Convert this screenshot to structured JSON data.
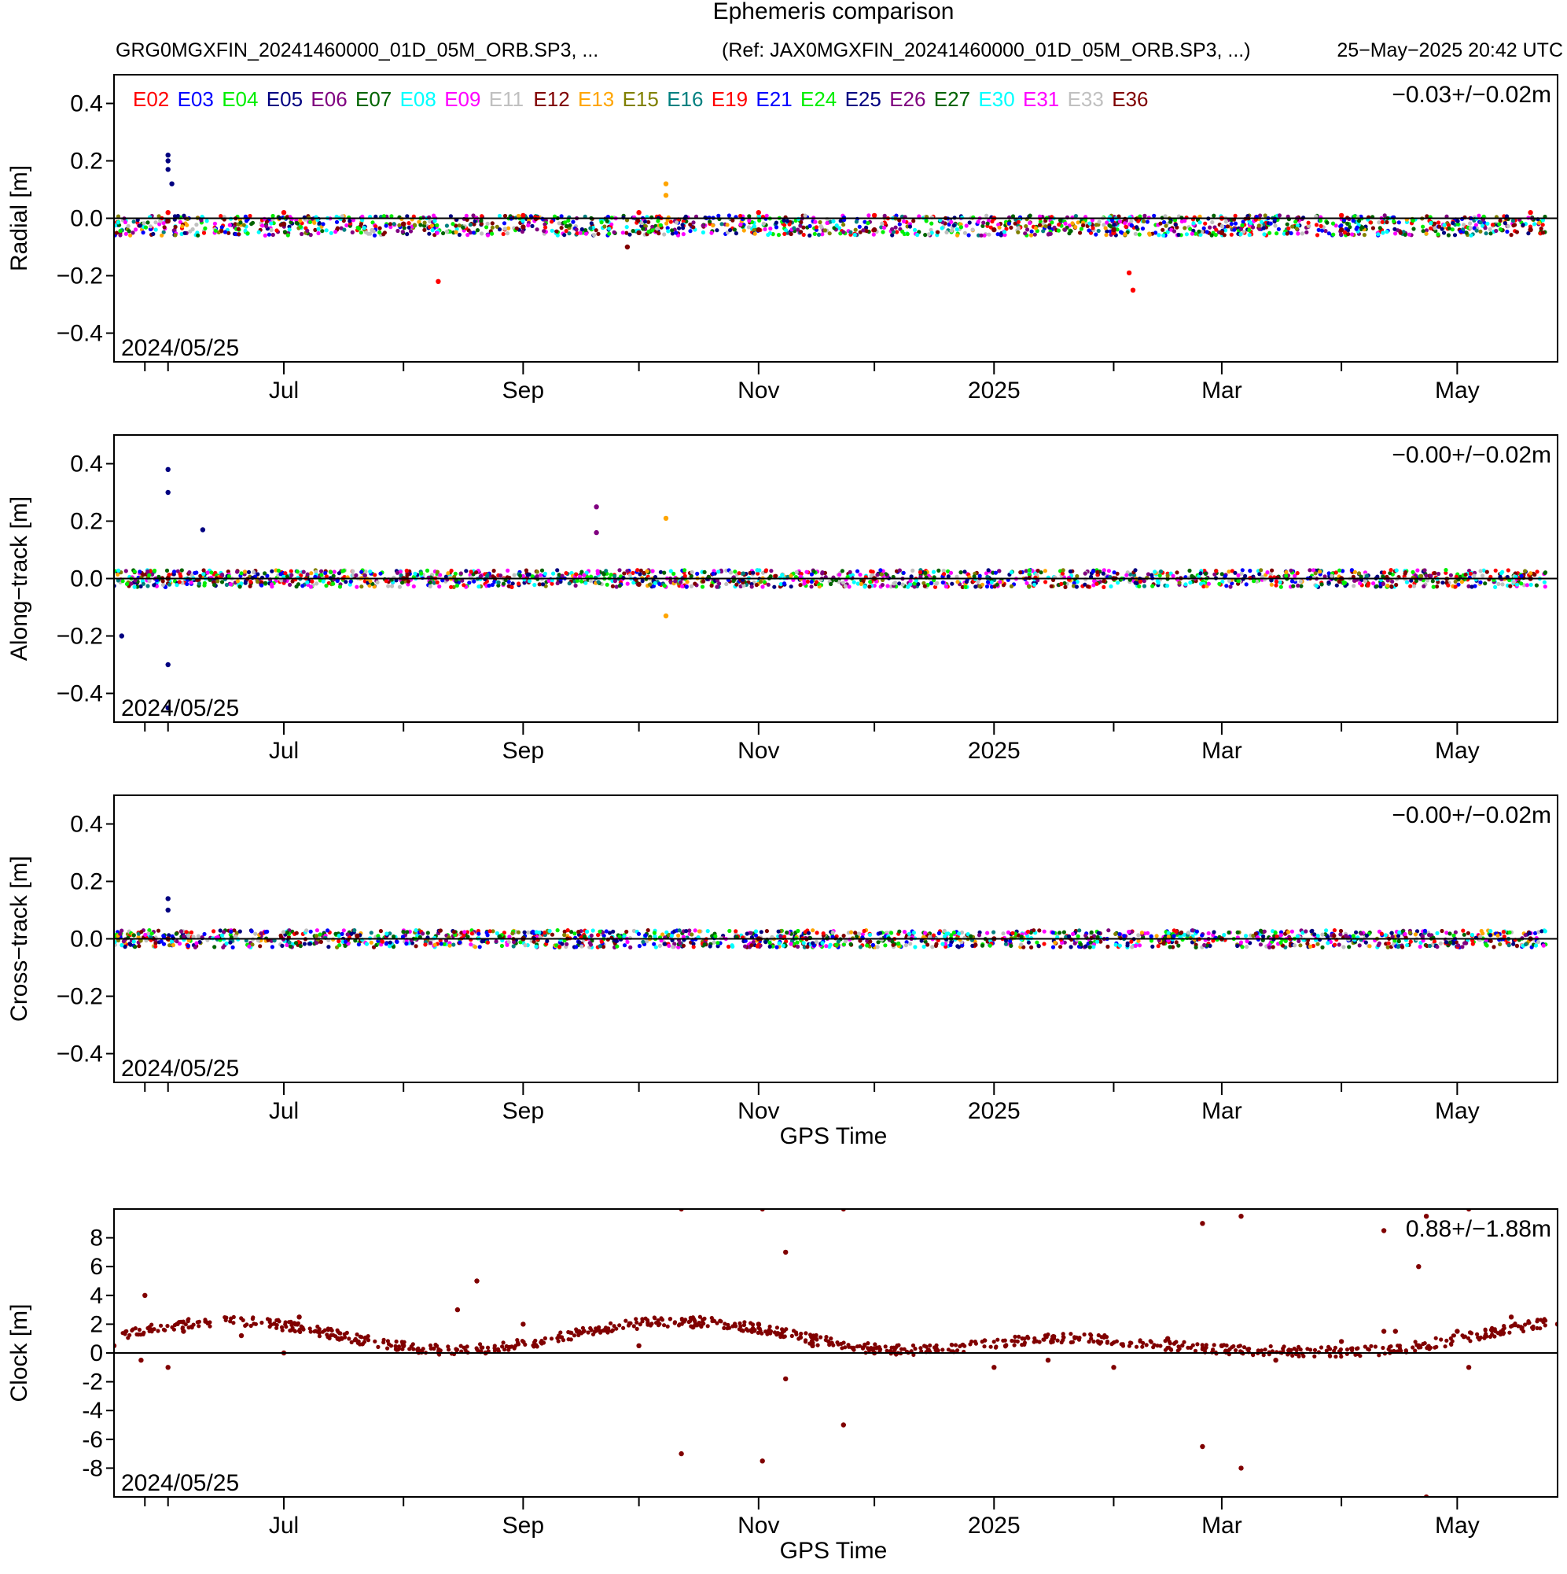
{
  "header": {
    "title": "Ephemeris comparison",
    "left_info": "GRG0MGXFIN_20241460000_01D_05M_ORB.SP3, ...",
    "right_info": "(Ref: JAX0MGXFIN_20241460000_01D_05M_ORB.SP3, ...)",
    "timestamp": "25−May−2025 20:42 UTC"
  },
  "legend": [
    {
      "label": "E02",
      "color": "#ff0000"
    },
    {
      "label": "E03",
      "color": "#0000ff"
    },
    {
      "label": "E04",
      "color": "#00ee00"
    },
    {
      "label": "E05",
      "color": "#000080"
    },
    {
      "label": "E06",
      "color": "#800080"
    },
    {
      "label": "E07",
      "color": "#006400"
    },
    {
      "label": "E08",
      "color": "#00ffff"
    },
    {
      "label": "E09",
      "color": "#ff00ff"
    },
    {
      "label": "E11",
      "color": "#c0c0c0"
    },
    {
      "label": "E12",
      "color": "#800000"
    },
    {
      "label": "E13",
      "color": "#ffa500"
    },
    {
      "label": "E15",
      "color": "#808000"
    },
    {
      "label": "E16",
      "color": "#008080"
    },
    {
      "label": "E19",
      "color": "#ff0000"
    },
    {
      "label": "E21",
      "color": "#0000ff"
    },
    {
      "label": "E24",
      "color": "#00ee00"
    },
    {
      "label": "E25",
      "color": "#000080"
    },
    {
      "label": "E26",
      "color": "#800080"
    },
    {
      "label": "E27",
      "color": "#006400"
    },
    {
      "label": "E30",
      "color": "#00ffff"
    },
    {
      "label": "E31",
      "color": "#ff00ff"
    },
    {
      "label": "E33",
      "color": "#c0c0c0"
    },
    {
      "label": "E36",
      "color": "#800000"
    }
  ],
  "chart_data": [
    {
      "type": "scatter",
      "ylabel": "Radial [m]",
      "xlabel": "",
      "stat": "−0.03+/−0.02m",
      "date_label": "2024/05/25",
      "ylim": [
        -0.5,
        0.5
      ],
      "yticks": [
        "0.4",
        "0.2",
        "0.0",
        "−0.2",
        "−0.4"
      ],
      "ytick_values": [
        0.4,
        0.2,
        0.0,
        -0.2,
        -0.4
      ],
      "xtick_labels": [
        "Jul",
        "Sep",
        "Nov",
        "2025",
        "Mar",
        "May"
      ],
      "xlim": [
        "2024-05-18",
        "2025-05-27"
      ],
      "series": [
        {
          "name": "E02",
          "x": [
            "2024-06-01",
            "2024-07-01",
            "2024-08-01",
            "2024-08-10",
            "2024-09-01",
            "2024-10-01",
            "2024-11-01",
            "2024-12-01",
            "2025-01-01",
            "2025-02-01",
            "2025-03-01",
            "2025-04-01",
            "2025-05-20"
          ],
          "y": [
            0.02,
            0.02,
            -0.02,
            -0.22,
            0.01,
            0.02,
            0.02,
            0.01,
            0.0,
            -0.05,
            0.0,
            0.01,
            0.02
          ]
        },
        {
          "name": "E05",
          "x": [
            "2024-06-01",
            "2024-06-01",
            "2024-06-01",
            "2024-06-02"
          ],
          "y": [
            0.22,
            0.2,
            0.17,
            0.12
          ]
        },
        {
          "name": "E12",
          "x": [
            "2024-06-01",
            "2024-07-01",
            "2024-08-01",
            "2024-09-01",
            "2024-09-28",
            "2024-10-01",
            "2024-11-01",
            "2024-12-01",
            "2025-01-01",
            "2025-02-01",
            "2025-03-01",
            "2025-04-01",
            "2025-05-20"
          ],
          "y": [
            -0.01,
            -0.02,
            -0.02,
            -0.03,
            -0.1,
            -0.05,
            -0.04,
            -0.04,
            -0.04,
            -0.04,
            -0.05,
            -0.04,
            -0.04
          ]
        },
        {
          "name": "E19",
          "x": [
            "2025-02-05",
            "2025-02-06"
          ],
          "y": [
            -0.19,
            -0.25
          ]
        },
        {
          "name": "E13",
          "x": [
            "2024-10-08",
            "2024-10-08"
          ],
          "y": [
            0.12,
            0.08
          ]
        }
      ]
    },
    {
      "type": "scatter",
      "ylabel": "Along−track [m]",
      "xlabel": "",
      "stat": "−0.00+/−0.02m",
      "date_label": "2024/05/25",
      "ylim": [
        -0.5,
        0.5
      ],
      "yticks": [
        "0.4",
        "0.2",
        "0.0",
        "−0.2",
        "−0.4"
      ],
      "ytick_values": [
        0.4,
        0.2,
        0.0,
        -0.2,
        -0.4
      ],
      "xtick_labels": [
        "Jul",
        "Sep",
        "Nov",
        "2025",
        "Mar",
        "May"
      ],
      "xlim": [
        "2024-05-18",
        "2025-05-27"
      ],
      "series": [
        {
          "name": "E05",
          "x": [
            "2024-05-20",
            "2024-06-01",
            "2024-06-01",
            "2024-06-01",
            "2024-06-01",
            "2024-06-10"
          ],
          "y": [
            -0.2,
            0.38,
            0.3,
            -0.3,
            -0.45,
            0.17
          ]
        },
        {
          "name": "E26",
          "x": [
            "2024-09-20",
            "2024-09-20"
          ],
          "y": [
            0.25,
            0.16
          ]
        },
        {
          "name": "E13",
          "x": [
            "2024-10-08",
            "2024-10-08"
          ],
          "y": [
            0.21,
            -0.13
          ]
        },
        {
          "name": "E36",
          "x": [
            "2024-06-01",
            "2024-08-01",
            "2024-10-01",
            "2024-12-01",
            "2025-02-01",
            "2025-04-01",
            "2025-05-20"
          ],
          "y": [
            0.0,
            0.0,
            -0.02,
            0.0,
            0.0,
            0.0,
            0.0
          ]
        }
      ]
    },
    {
      "type": "scatter",
      "ylabel": "Cross−track [m]",
      "xlabel": "GPS Time",
      "stat": "−0.00+/−0.02m",
      "date_label": "2024/05/25",
      "ylim": [
        -0.5,
        0.5
      ],
      "yticks": [
        "0.4",
        "0.2",
        "0.0",
        "−0.2",
        "−0.4"
      ],
      "ytick_values": [
        0.4,
        0.2,
        0.0,
        -0.2,
        -0.4
      ],
      "xtick_labels": [
        "Jul",
        "Sep",
        "Nov",
        "2025",
        "Mar",
        "May"
      ],
      "xlim": [
        "2024-05-18",
        "2025-05-27"
      ],
      "series": [
        {
          "name": "E05",
          "x": [
            "2024-06-01",
            "2024-06-01"
          ],
          "y": [
            0.14,
            0.1
          ]
        },
        {
          "name": "E36",
          "x": [
            "2024-06-01",
            "2024-07-20",
            "2024-09-01",
            "2024-11-01",
            "2025-01-01",
            "2025-03-01",
            "2025-05-20"
          ],
          "y": [
            0.0,
            0.01,
            0.0,
            0.0,
            0.0,
            0.0,
            0.0
          ]
        }
      ]
    },
    {
      "type": "scatter",
      "ylabel": "Clock [m]",
      "xlabel": "GPS Time",
      "stat": "0.88+/−1.88m",
      "date_label": "2024/05/25",
      "ylim": [
        -10,
        10
      ],
      "yticks": [
        "8",
        "6",
        "4",
        "2",
        "0",
        "-2",
        "-4",
        "-6",
        "-8"
      ],
      "ytick_values": [
        8,
        6,
        4,
        2,
        0,
        -2,
        -4,
        -6,
        -8
      ],
      "xtick_labels": [
        "Jul",
        "Sep",
        "Nov",
        "2025",
        "Mar",
        "May"
      ],
      "xlim": [
        "2024-05-18",
        "2025-05-27"
      ],
      "series": [
        {
          "name": "E36",
          "x": [
            "2024-05-18",
            "2024-05-25",
            "2024-05-26",
            "2024-06-01",
            "2024-06-05",
            "2024-06-20",
            "2024-07-01",
            "2024-07-05",
            "2024-07-15",
            "2024-08-01",
            "2024-08-15",
            "2024-08-20",
            "2024-09-01",
            "2024-09-15",
            "2024-10-01",
            "2024-10-15",
            "2024-11-01",
            "2024-11-15",
            "2024-12-01",
            "2024-12-15",
            "2025-01-01",
            "2025-01-15",
            "2025-02-01",
            "2025-02-15",
            "2025-03-01",
            "2025-03-15",
            "2025-04-01",
            "2025-04-15",
            "2025-05-01",
            "2025-05-15",
            "2025-05-27"
          ],
          "y": [
            0.5,
            -0.5,
            4.0,
            -1.0,
            1.5,
            1.2,
            0.0,
            2.5,
            1.0,
            0.5,
            3.0,
            5.0,
            2.0,
            1.5,
            0.5,
            1.8,
            2.0,
            0.5,
            0.0,
            0.2,
            -1.0,
            -0.5,
            -1.0,
            1.0,
            0.5,
            -0.5,
            0.8,
            1.5,
            1.5,
            2.5,
            2.0
          ]
        },
        {
          "name": "E12",
          "x": [
            "2024-10-12",
            "2024-10-12",
            "2024-11-02",
            "2024-11-02",
            "2024-11-08",
            "2024-11-08",
            "2024-11-23",
            "2024-11-23",
            "2025-02-24",
            "2025-02-24",
            "2025-03-06",
            "2025-03-06",
            "2025-04-12",
            "2025-04-12",
            "2025-04-21",
            "2025-04-21",
            "2025-04-23",
            "2025-04-23",
            "2025-05-04",
            "2025-05-04"
          ],
          "y": [
            10,
            -7,
            10,
            -7.5,
            7,
            -1.8,
            10,
            -5,
            9,
            -6.5,
            9.5,
            -8,
            8.5,
            1.5,
            6,
            0.5,
            9.5,
            -10,
            10,
            -1
          ]
        }
      ]
    }
  ]
}
